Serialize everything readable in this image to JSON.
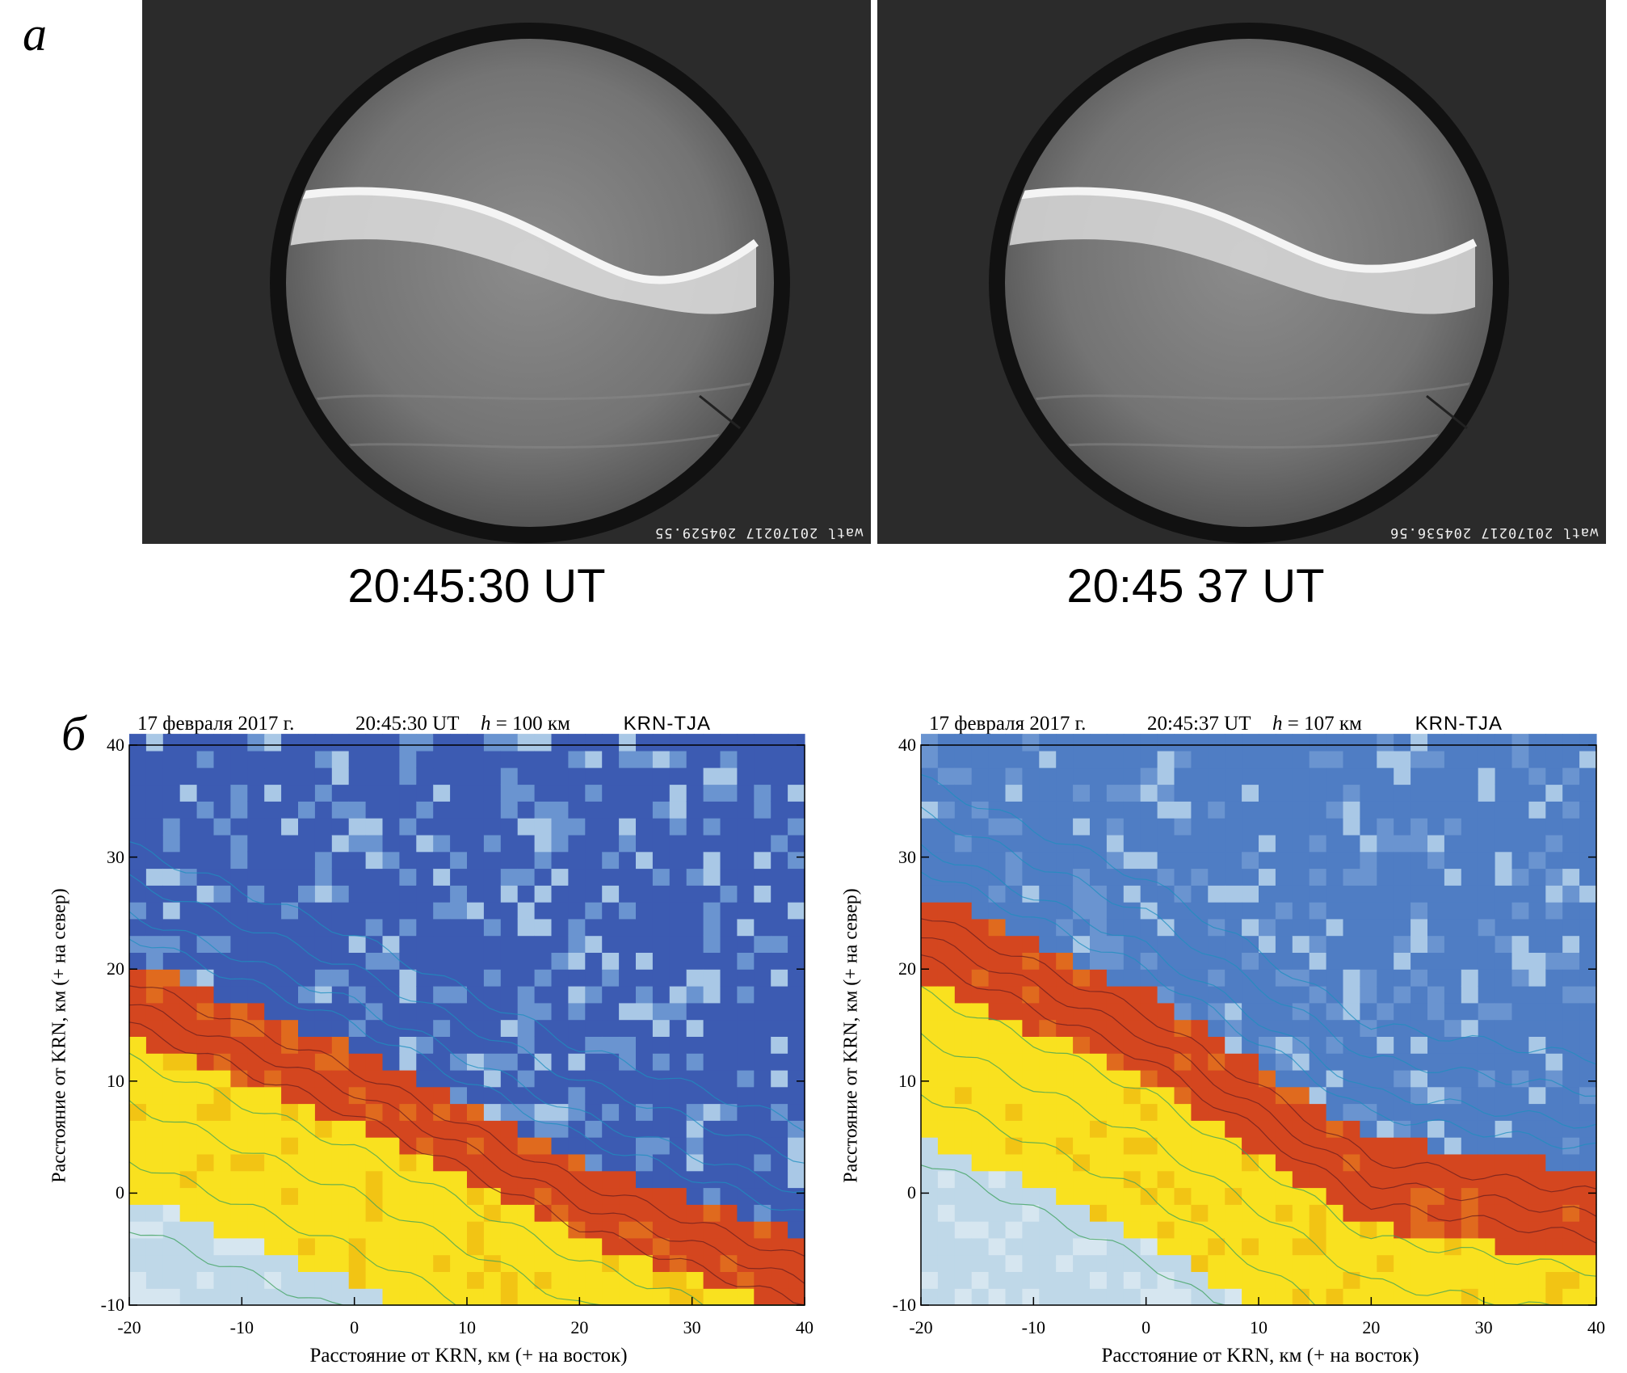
{
  "panel_labels": {
    "a": "а",
    "b": "б"
  },
  "camera_frames": [
    {
      "stamp": "watl 20170217 204529.55",
      "caption": "20:45:30 UT"
    },
    {
      "stamp": "watl 20170217 204536.56",
      "caption": "20:45 37 UT"
    }
  ],
  "maps": [
    {
      "date": "17 февраля 2017 г.",
      "time": "20:45:30 UT",
      "h_label": "h",
      "h_value": " = 100 км",
      "station": "KRN-TJA",
      "ylabel": "Расстояние от KRN, км (+ на север)",
      "xlabel": "Расстояние от KRN, км (+ на восток)"
    },
    {
      "date": "17 февраля 2017 г.",
      "time": "20:45:37 UT",
      "h_label": "h",
      "h_value": " = 107 км",
      "station": "KRN-TJA",
      "ylabel": "Расстояние от KRN, км (+ на север)",
      "xlabel": "Расстояние от KRN, км (+ на восток)"
    }
  ],
  "chart_data": [
    {
      "type": "heatmap",
      "title": "",
      "xlabel": "Расстояние от KRN, км (+ на восток)",
      "ylabel": "Расстояние от KRN, км (+ на север)",
      "xlim": [
        -20,
        40
      ],
      "ylim": [
        -10,
        40
      ],
      "xticks": [
        -20,
        -10,
        0,
        10,
        20,
        30,
        40
      ],
      "yticks": [
        -10,
        0,
        10,
        20,
        30,
        40
      ],
      "band_edge": {
        "x": [
          -20,
          0,
          20,
          40
        ],
        "y": [
          21,
          13,
          3,
          -4
        ]
      },
      "band_width_km": 7,
      "colors": {
        "high": "#d4461f",
        "mid": "#f9e11f",
        "low": "#bfd8e8",
        "background": "#3c5bb2"
      }
    },
    {
      "type": "heatmap",
      "title": "",
      "xlabel": "Расстояние от KRN, км (+ на восток)",
      "ylabel": "Расстояние от KRN, км (+ на север)",
      "xlim": [
        -20,
        40
      ],
      "ylim": [
        -10,
        40
      ],
      "xticks": [
        -20,
        -10,
        0,
        10,
        20,
        30,
        40
      ],
      "yticks": [
        -10,
        0,
        10,
        20,
        30,
        40
      ],
      "band_edge": {
        "x": [
          -20,
          0,
          20,
          40
        ],
        "y": [
          27,
          18,
          5,
          2
        ]
      },
      "band_width_km": 8,
      "colors": {
        "high": "#d4461f",
        "mid": "#f9e11f",
        "low": "#bfd8e8",
        "background": "#4f7dc4"
      }
    }
  ]
}
